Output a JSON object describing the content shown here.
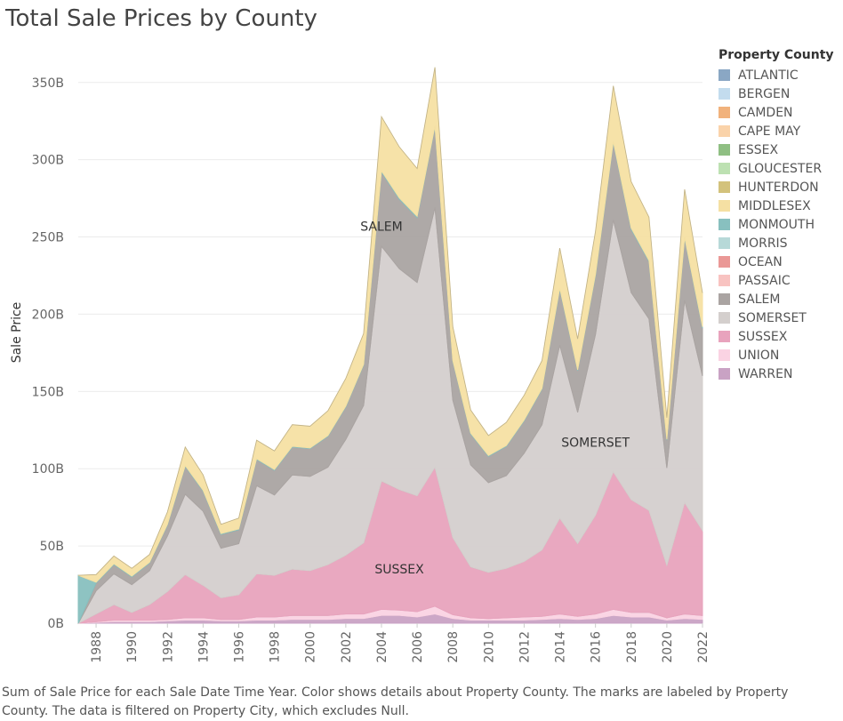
{
  "chart_data": {
    "type": "area",
    "stacked": true,
    "title": "Total Sale Prices by County",
    "ylabel": "Sale Price",
    "xlabel": "",
    "ylim": [
      0,
      370
    ],
    "y_unit_suffix": "B",
    "y_ticks": [
      0,
      50,
      100,
      150,
      200,
      250,
      300,
      350
    ],
    "y_tick_labels": [
      "0B",
      "50B",
      "100B",
      "150B",
      "200B",
      "250B",
      "300B",
      "350B"
    ],
    "x": [
      1987,
      1988,
      1989,
      1990,
      1991,
      1992,
      1993,
      1994,
      1995,
      1996,
      1997,
      1998,
      1999,
      2000,
      2001,
      2002,
      2003,
      2004,
      2005,
      2006,
      2007,
      2008,
      2009,
      2010,
      2011,
      2012,
      2013,
      2014,
      2015,
      2016,
      2017,
      2018,
      2019,
      2020,
      2021,
      2022
    ],
    "x_tick_labels": [
      "1988",
      "1990",
      "1992",
      "1994",
      "1996",
      "1998",
      "2000",
      "2002",
      "2004",
      "2006",
      "2008",
      "2010",
      "2012",
      "2014",
      "2016",
      "2018",
      "2020",
      "2022"
    ],
    "grid": true,
    "legend_title": "Property County",
    "legend_position": "right",
    "series": [
      {
        "name": "WARREN",
        "color": "#c9a2c4",
        "values": [
          0,
          0.5,
          1,
          1,
          1,
          1.5,
          2,
          2,
          1.5,
          1.5,
          2,
          2,
          2.5,
          2.5,
          2.5,
          3,
          3,
          5,
          5,
          4,
          6,
          3,
          2,
          2,
          2,
          2,
          2.5,
          3,
          2.5,
          3,
          5,
          4,
          4,
          2,
          3,
          2.5
        ]
      },
      {
        "name": "UNION",
        "color": "#fad3e3",
        "values": [
          0,
          0.5,
          1,
          1,
          1,
          1,
          1.5,
          1.5,
          1,
          1,
          2,
          2,
          2.5,
          2.5,
          2.5,
          3,
          3,
          4,
          3.5,
          3.5,
          5,
          2.5,
          1.5,
          1,
          1.5,
          2,
          2,
          3,
          2,
          3,
          4,
          3,
          3,
          1.5,
          3,
          2.5
        ]
      },
      {
        "name": "SUSSEX",
        "color": "#e8a3bd",
        "values": [
          0,
          5,
          10,
          5,
          10,
          18,
          28,
          21,
          14,
          16,
          28,
          27,
          30,
          29,
          33,
          38,
          46,
          83,
          78,
          75,
          90,
          50,
          33,
          30,
          32,
          36,
          43,
          62,
          47,
          64,
          89,
          73,
          66,
          34,
          72,
          55
        ]
      },
      {
        "name": "SOMERSET",
        "color": "#d4cfcd",
        "values": [
          0,
          15,
          20,
          18,
          22,
          36,
          52,
          48,
          32,
          33,
          57,
          52,
          61,
          61,
          63,
          75,
          89,
          152,
          143,
          138,
          168,
          89,
          66,
          58,
          60,
          70,
          81,
          112,
          85,
          117,
          163,
          134,
          124,
          63,
          131,
          100
        ]
      },
      {
        "name": "SALEM",
        "color": "#aaa4a2",
        "values": [
          0,
          5,
          6,
          5,
          5,
          7,
          18,
          13,
          9,
          9,
          17,
          16,
          18,
          18,
          20,
          21,
          26,
          48,
          45,
          42,
          52,
          25,
          20,
          17,
          19,
          21,
          23,
          36,
          27,
          38,
          50,
          41,
          37,
          18,
          40,
          31
        ]
      },
      {
        "name": "MONMOUTH",
        "color": "#88c0bf",
        "values": [
          31,
          0.5,
          0.5,
          0.5,
          0.5,
          0.5,
          0.5,
          0.5,
          0.5,
          0.5,
          0.5,
          0.5,
          0.5,
          0.5,
          0.5,
          0.5,
          0.5,
          0.8,
          0.8,
          0.8,
          0.8,
          0.5,
          0.5,
          0.5,
          0.5,
          0.5,
          0.5,
          0.8,
          0.5,
          0.8,
          0.8,
          0.8,
          0.8,
          0.5,
          0.8,
          0.8
        ]
      },
      {
        "name": "MIDDLESEX",
        "color": "#f5e0a3",
        "values": [
          0,
          5,
          5,
          5,
          5,
          8,
          12,
          10,
          6,
          7,
          12,
          12,
          14,
          14,
          16,
          18,
          20,
          35,
          33,
          31,
          38,
          22,
          15,
          13,
          15,
          16,
          18,
          26,
          20,
          28,
          36,
          30,
          28,
          14,
          31,
          22
        ]
      }
    ],
    "legend_entries": [
      {
        "name": "ATLANTIC",
        "color": "#8aa7c4"
      },
      {
        "name": "BERGEN",
        "color": "#c3dcee"
      },
      {
        "name": "CAMDEN",
        "color": "#f1b27c"
      },
      {
        "name": "CAPE MAY",
        "color": "#fad3aa"
      },
      {
        "name": "ESSEX",
        "color": "#8fbf83"
      },
      {
        "name": "GLOUCESTER",
        "color": "#bde1b2"
      },
      {
        "name": "HUNTERDON",
        "color": "#d3c27c"
      },
      {
        "name": "MIDDLESEX",
        "color": "#f5e0a3"
      },
      {
        "name": "MONMOUTH",
        "color": "#88c0bf"
      },
      {
        "name": "MORRIS",
        "color": "#b7d9d8"
      },
      {
        "name": "OCEAN",
        "color": "#ea9896"
      },
      {
        "name": "PASSAIC",
        "color": "#f8c3c1"
      },
      {
        "name": "SALEM",
        "color": "#aaa4a2"
      },
      {
        "name": "SOMERSET",
        "color": "#d4cfcd"
      },
      {
        "name": "SUSSEX",
        "color": "#e8a3bd"
      },
      {
        "name": "UNION",
        "color": "#fad3e3"
      },
      {
        "name": "WARREN",
        "color": "#c9a2c4"
      }
    ],
    "mark_labels": [
      {
        "series": "SALEM",
        "x": 2004,
        "y": 257
      },
      {
        "series": "SOMERSET",
        "x": 2016,
        "y": 117
      },
      {
        "series": "SUSSEX",
        "x": 2005,
        "y": 35
      }
    ]
  },
  "caption": "Sum of Sale Price for each Sale Date Time Year.  Color shows details about Property County.  The marks are labeled by Property County. The data is filtered on Property City, which excludes Null."
}
